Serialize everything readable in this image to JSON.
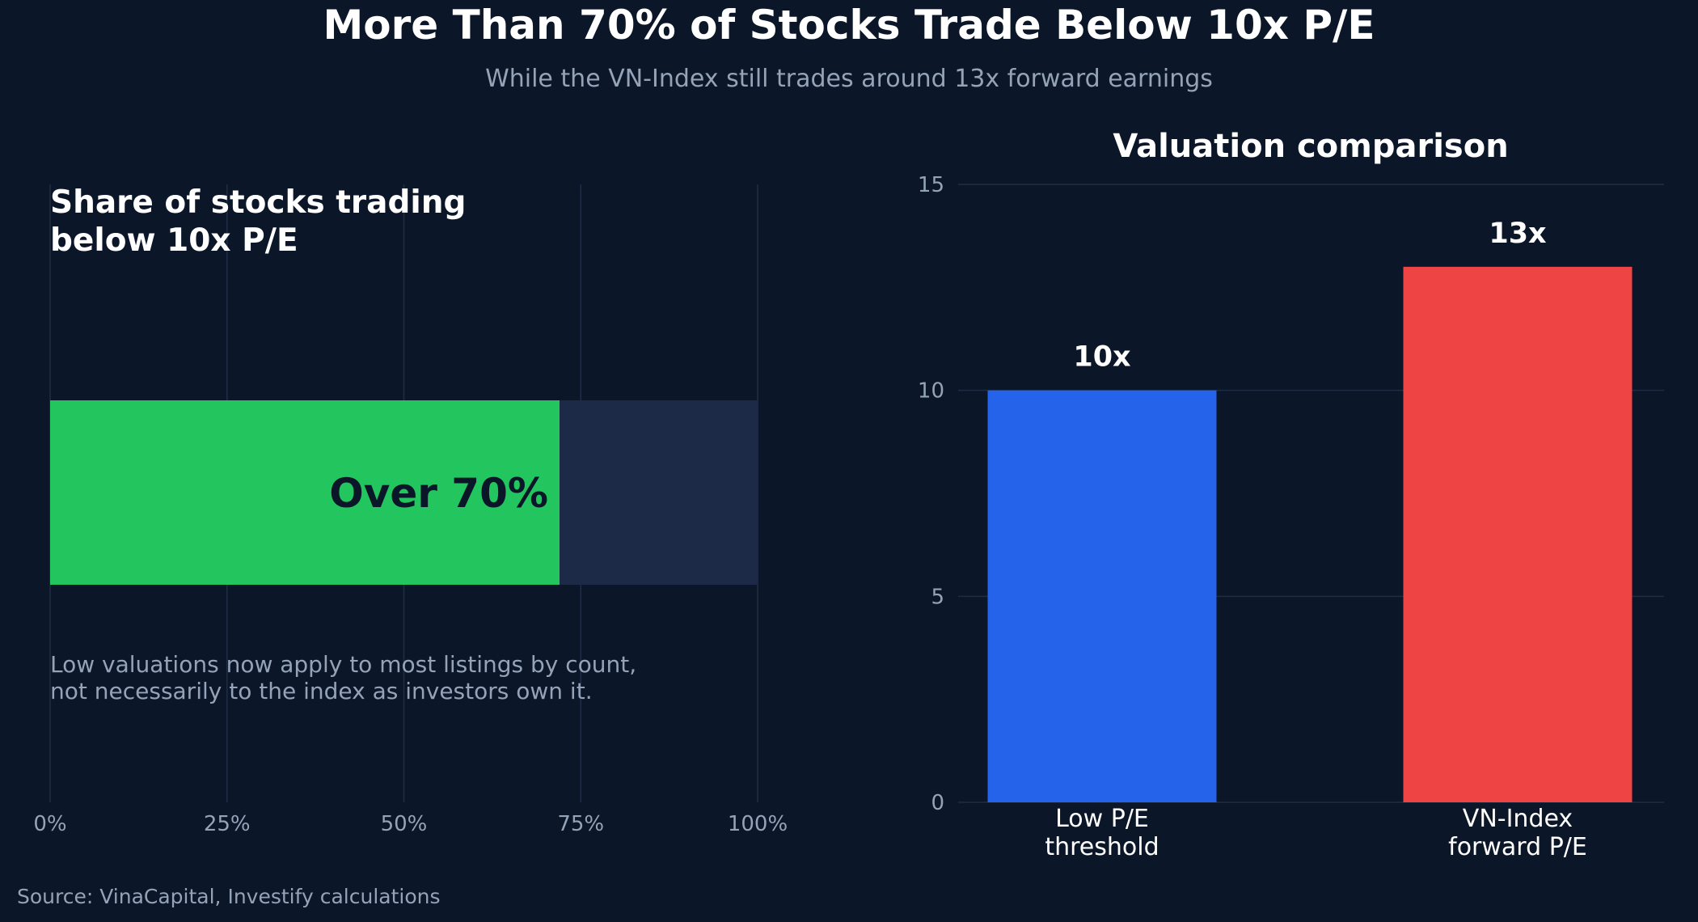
{
  "title": "More Than 70% of Stocks Trade Below 10x P/E",
  "subtitle": "While the VN-Index still trades around 13x forward earnings",
  "source": "Source: VinaCapital, Investify calculations",
  "colors": {
    "background": "#0b1628",
    "share_bar": "#22c55e",
    "share_track": "#1c2a47",
    "low_pe_bar": "#2563eb",
    "vn_index_bar": "#ef4444",
    "grid": "#1f2d44",
    "tick_text": "#94a3b8"
  },
  "chart_data": [
    {
      "type": "bar",
      "orientation": "horizontal",
      "title": "Share of stocks trading below 10x P/E",
      "title_lines": [
        "Share of stocks trading",
        "below 10x P/E"
      ],
      "value": 72,
      "value_label": "Over 70%",
      "xlim": [
        0,
        100
      ],
      "xticks": [
        0,
        25,
        50,
        75,
        100
      ],
      "xtick_labels": [
        "0%",
        "25%",
        "50%",
        "75%",
        "100%"
      ],
      "annotation_lines": [
        "Low valuations now apply to most listings by count,",
        "not necessarily to the index as investors own it."
      ],
      "grid": true
    },
    {
      "type": "bar",
      "title": "Valuation comparison",
      "categories": [
        "Low P/E threshold",
        "VN-Index forward P/E"
      ],
      "category_lines": [
        [
          "Low P/E",
          "threshold"
        ],
        [
          "VN-Index",
          "forward P/E"
        ]
      ],
      "values": [
        10,
        13
      ],
      "data_labels": [
        "10x",
        "13x"
      ],
      "ylim": [
        0,
        15
      ],
      "yticks": [
        0,
        5,
        10,
        15
      ],
      "ytick_labels": [
        "0",
        "5",
        "10",
        "15"
      ],
      "grid": true
    }
  ]
}
